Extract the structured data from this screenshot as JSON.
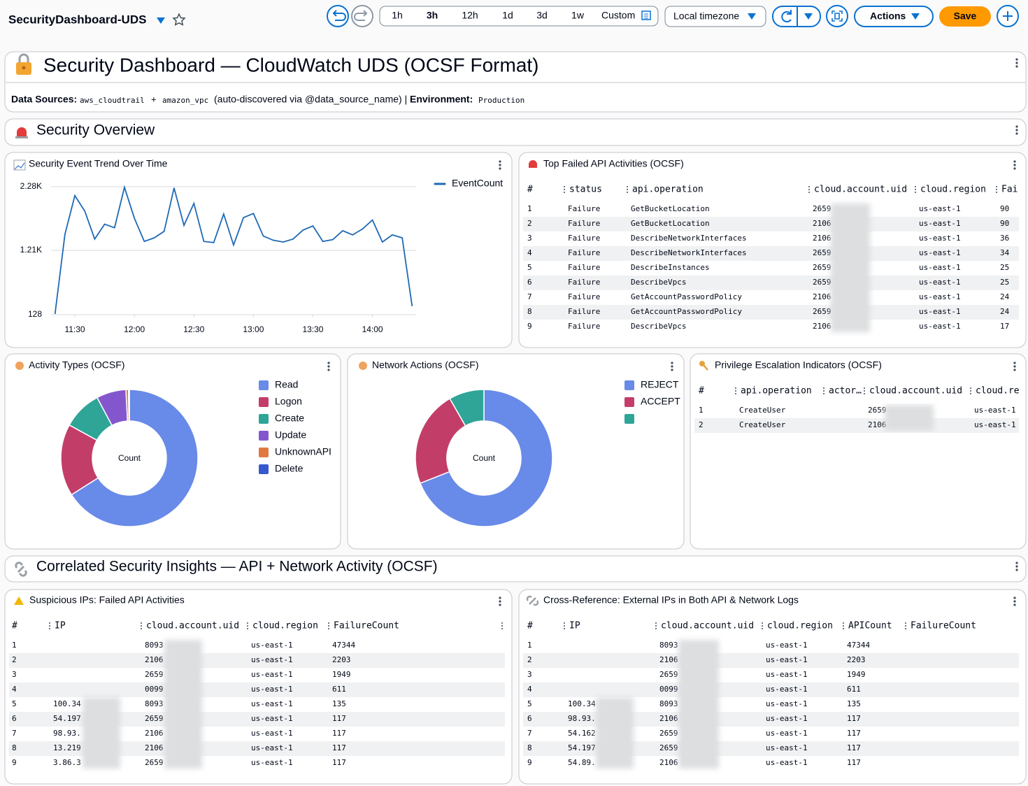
{
  "header": {
    "title": "SecurityDashboard-UDS",
    "time_ranges": [
      "1h",
      "3h",
      "12h",
      "1d",
      "3d",
      "1w"
    ],
    "custom": "Custom",
    "timezone": "Local timezone",
    "actions": "Actions",
    "save": "Save"
  },
  "banner": {
    "title": "Security Dashboard — CloudWatch UDS (OCSF Format)",
    "sources_label": "Data Sources:",
    "source_1": "aws_cloudtrail",
    "plus": "+",
    "source_2": "amazon_vpc",
    "note": "(auto-discovered via @data_source_name) |",
    "environment_label": "Environment:",
    "environment": "Production"
  },
  "sections": [
    "Security Overview",
    "Correlated Security Insights — API + Network Activity (OCSF)"
  ],
  "chart_data": [
    {
      "type": "line",
      "title": "Security Event Trend Over Time",
      "x": [
        "11:20",
        "11:25",
        "11:30",
        "11:35",
        "11:40",
        "11:45",
        "11:50",
        "11:55",
        "12:00",
        "12:05",
        "12:10",
        "12:15",
        "12:20",
        "12:25",
        "12:30",
        "12:35",
        "12:40",
        "12:45",
        "12:50",
        "12:55",
        "13:00",
        "13:05",
        "13:10",
        "13:15",
        "13:20",
        "13:25",
        "13:30",
        "13:35",
        "13:40",
        "13:45",
        "13:50",
        "13:55",
        "14:00",
        "14:05",
        "14:10",
        "14:15",
        "14:20"
      ],
      "series": [
        {
          "name": "EventCount",
          "color": "#1f69b5",
          "values": [
            140,
            1480,
            2130,
            1870,
            1400,
            1650,
            1590,
            2270,
            1750,
            1360,
            1420,
            1530,
            2260,
            1630,
            2000,
            1360,
            1340,
            1820,
            1300,
            1760,
            1830,
            1450,
            1380,
            1350,
            1400,
            1550,
            1620,
            1360,
            1390,
            1540,
            1470,
            1570,
            1720,
            1350,
            1470,
            1420,
            270
          ]
        }
      ],
      "xlim": [
        "11:18",
        "14:22"
      ],
      "xticks": [
        "11:30",
        "12:00",
        "12:30",
        "13:00",
        "13:30",
        "14:00"
      ],
      "ylim": [
        128,
        2280
      ],
      "yticks": [
        128,
        {
          "value": 1210,
          "label": "1.21K"
        },
        {
          "value": 2280,
          "label": "2.28K"
        }
      ],
      "grid": true,
      "legend": "top-right"
    },
    {
      "type": "pie",
      "donut": true,
      "title": "Activity Types (OCSF)",
      "center_label": "Count",
      "categories": [
        "Read",
        "Logon",
        "Create",
        "Update",
        "UnknownAPI",
        "Delete"
      ],
      "colors": [
        "#688ae8",
        "#c33d69",
        "#2ea597",
        "#8456ce",
        "#e07941",
        "#3759ce"
      ],
      "values": [
        66,
        17,
        9.2,
        7,
        0.6,
        0.2
      ],
      "legend": "right"
    },
    {
      "type": "pie",
      "donut": true,
      "title": "Network Actions (OCSF)",
      "center_label": "Count",
      "categories": [
        "REJECT",
        "ACCEPT",
        null
      ],
      "colors": [
        "#688ae8",
        "#c33d69",
        "#2ea597"
      ],
      "values": [
        69,
        22.7,
        8.3
      ],
      "legend": "right"
    }
  ],
  "tables": [
    {
      "title": "Top Failed API Activities (OCSF)",
      "columns": [
        "#",
        "status",
        "api.operation",
        "cloud.account.uid",
        "cloud.region",
        "Fai"
      ],
      "rows": [
        [
          1,
          "Failure",
          "GetBucketLocation",
          "2659",
          "us-east-1",
          90
        ],
        [
          2,
          "Failure",
          "GetBucketLocation",
          "2106",
          "us-east-1",
          90
        ],
        [
          3,
          "Failure",
          "DescribeNetworkInterfaces",
          "2106",
          "us-east-1",
          36
        ],
        [
          4,
          "Failure",
          "DescribeNetworkInterfaces",
          "2659",
          "us-east-1",
          34
        ],
        [
          5,
          "Failure",
          "DescribeInstances",
          "2659",
          "us-east-1",
          25
        ],
        [
          6,
          "Failure",
          "DescribeVpcs",
          "2659",
          "us-east-1",
          25
        ],
        [
          7,
          "Failure",
          "GetAccountPasswordPolicy",
          "2106",
          "us-east-1",
          24
        ],
        [
          8,
          "Failure",
          "GetAccountPasswordPolicy",
          "2659",
          "us-east-1",
          24
        ],
        [
          9,
          "Failure",
          "DescribeVpcs",
          "2106",
          "us-east-1",
          17
        ]
      ]
    },
    {
      "title": "Privilege Escalation Indicators (OCSF)",
      "columns": [
        "#",
        "api.operation",
        "actor…",
        "cloud.account.uid",
        "cloud.re"
      ],
      "rows": [
        [
          1,
          "CreateUser",
          null,
          "2659",
          "us-east-1"
        ],
        [
          2,
          "CreateUser",
          null,
          "2106",
          "us-east-1"
        ]
      ]
    },
    {
      "title": "Suspicious IPs: Failed API Activities",
      "columns": [
        "#",
        "IP",
        "cloud.account.uid",
        "cloud.region",
        "FailureCount"
      ],
      "rows": [
        [
          1,
          null,
          "8093",
          "us-east-1",
          47344
        ],
        [
          2,
          null,
          "2106",
          "us-east-1",
          2203
        ],
        [
          3,
          null,
          "2659",
          "us-east-1",
          1949
        ],
        [
          4,
          null,
          "0099",
          "us-east-1",
          611
        ],
        [
          5,
          "100.34",
          "8093",
          "us-east-1",
          135
        ],
        [
          6,
          "54.197",
          "2659",
          "us-east-1",
          117
        ],
        [
          7,
          "98.93.",
          "2106",
          "us-east-1",
          117
        ],
        [
          8,
          "13.219",
          "2106",
          "us-east-1",
          117
        ],
        [
          9,
          "3.86.3",
          "2659",
          "us-east-1",
          117
        ]
      ]
    },
    {
      "title": "Cross-Reference: External IPs in Both API & Network Logs",
      "columns": [
        "#",
        "IP",
        "cloud.account.uid",
        "cloud.region",
        "APICount",
        "FailureCount"
      ],
      "rows": [
        [
          1,
          null,
          "8093",
          "us-east-1",
          47344,
          null
        ],
        [
          2,
          null,
          "2106",
          "us-east-1",
          2203,
          null
        ],
        [
          3,
          null,
          "2659",
          "us-east-1",
          1949,
          null
        ],
        [
          4,
          null,
          "0099",
          "us-east-1",
          611,
          null
        ],
        [
          5,
          "100.34",
          "8093",
          "us-east-1",
          135,
          null
        ],
        [
          6,
          "98.93.",
          "2106",
          "us-east-1",
          117,
          null
        ],
        [
          7,
          "54.162",
          "2659",
          "us-east-1",
          117,
          null
        ],
        [
          8,
          "54.197",
          "2659",
          "us-east-1",
          117,
          null
        ],
        [
          9,
          "54.89.",
          "2106",
          "us-east-1",
          117,
          null
        ]
      ]
    }
  ]
}
